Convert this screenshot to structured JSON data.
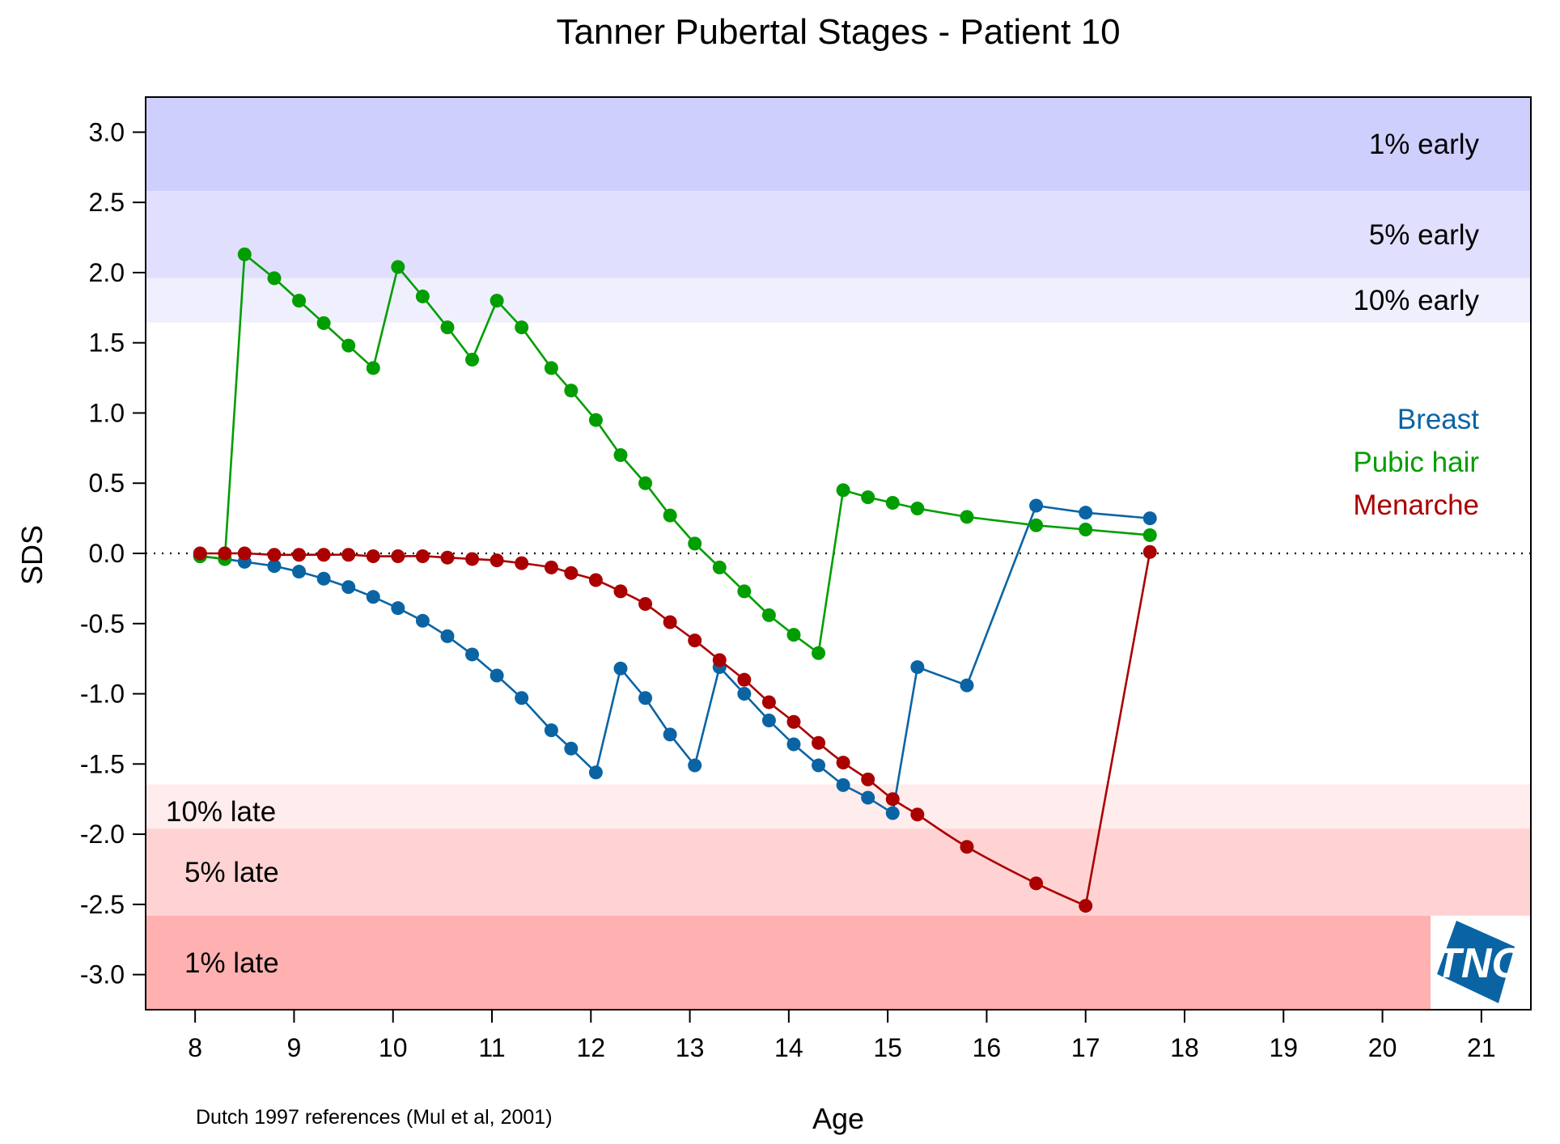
{
  "chart_data": {
    "type": "line",
    "title": "Tanner Pubertal Stages - Patient  10",
    "xlabel": "Age",
    "ylabel": "SDS",
    "xlim": [
      7.5,
      21.5
    ],
    "ylim": [
      -3.25,
      3.25
    ],
    "x_ticks": [
      8,
      9,
      10,
      11,
      12,
      13,
      14,
      15,
      16,
      17,
      18,
      19,
      20,
      21
    ],
    "y_ticks": [
      3.0,
      2.5,
      2.0,
      1.5,
      1.0,
      0.5,
      0.0,
      -0.5,
      -1.0,
      -1.5,
      -2.0,
      -2.5,
      -3.0
    ],
    "y_tick_labels": [
      "3.0",
      "2.5",
      "2.0",
      "1.5",
      "1.0",
      "0.5",
      "0.0",
      "-0.5",
      "-1.0",
      "-1.5",
      "-2.0",
      "-2.5",
      "-3.0"
    ],
    "reference_line": 0,
    "bands": [
      {
        "label": "1% early",
        "from": 2.58,
        "to": 3.25,
        "color": "#cfcffe"
      },
      {
        "label": "5% early",
        "from": 1.96,
        "to": 2.58,
        "color": "#e0e0fe"
      },
      {
        "label": "10% early",
        "from": 1.645,
        "to": 1.96,
        "color": "#efeffe"
      },
      {
        "label": "10% late",
        "from": -1.96,
        "to": -1.645,
        "color": "#ffecec"
      },
      {
        "label": "5% late",
        "from": -2.58,
        "to": -1.96,
        "color": "#ffd3d3"
      },
      {
        "label": "1% late",
        "from": -3.25,
        "to": -2.58,
        "color": "#ffb0b0"
      }
    ],
    "series": [
      {
        "name": "Breast",
        "color": "#0a64a4",
        "x": [
          8.05,
          8.3,
          8.5,
          8.8,
          9.05,
          9.3,
          9.55,
          9.8,
          10.05,
          10.3,
          10.55,
          10.8,
          11.05,
          11.3,
          11.6,
          11.8,
          12.05,
          12.3,
          12.55,
          12.8,
          13.05,
          13.3,
          13.55,
          13.8,
          14.05,
          14.3,
          14.55,
          14.8,
          15.05,
          15.3,
          15.8,
          16.5,
          17.0,
          17.65
        ],
        "y": [
          -0.02,
          -0.04,
          -0.06,
          -0.09,
          -0.13,
          -0.18,
          -0.24,
          -0.31,
          -0.39,
          -0.48,
          -0.59,
          -0.72,
          -0.87,
          -1.03,
          -1.26,
          -1.39,
          -1.56,
          -0.82,
          -1.03,
          -1.29,
          -1.51,
          -0.81,
          -1.0,
          -1.19,
          -1.36,
          -1.51,
          -1.65,
          -1.74,
          -1.85,
          -0.81,
          -0.94,
          0.34,
          0.29,
          0.25
        ]
      },
      {
        "name": "Pubic hair",
        "color": "#009e00",
        "x": [
          8.05,
          8.3,
          8.5,
          8.8,
          9.05,
          9.3,
          9.55,
          9.8,
          10.05,
          10.3,
          10.55,
          10.8,
          11.05,
          11.3,
          11.6,
          11.8,
          12.05,
          12.3,
          12.55,
          12.8,
          13.05,
          13.3,
          13.55,
          13.8,
          14.05,
          14.3,
          14.55,
          14.8,
          15.05,
          15.3,
          15.8,
          16.5,
          17.0,
          17.65
        ],
        "y": [
          -0.02,
          -0.04,
          2.13,
          1.96,
          1.8,
          1.64,
          1.48,
          1.32,
          2.04,
          1.83,
          1.61,
          1.38,
          1.8,
          1.61,
          1.32,
          1.16,
          0.95,
          0.7,
          0.5,
          0.27,
          0.07,
          -0.1,
          -0.27,
          -0.44,
          -0.58,
          -0.71,
          0.45,
          0.4,
          0.36,
          0.32,
          0.26,
          0.2,
          0.17,
          0.13
        ]
      },
      {
        "name": "Menarche",
        "color": "#aa0000",
        "smooth": true,
        "x": [
          8.05,
          8.3,
          8.5,
          8.8,
          9.05,
          9.3,
          9.55,
          9.8,
          10.05,
          10.3,
          10.55,
          10.8,
          11.05,
          11.3,
          11.6,
          11.8,
          12.05,
          12.3,
          12.55,
          12.8,
          13.05,
          13.3,
          13.55,
          13.8,
          14.05,
          14.3,
          14.55,
          14.8,
          15.05,
          15.3,
          15.8,
          16.5,
          17.0,
          17.65
        ],
        "y": [
          0.0,
          0.0,
          0.0,
          -0.01,
          -0.01,
          -0.01,
          -0.01,
          -0.02,
          -0.02,
          -0.02,
          -0.03,
          -0.04,
          -0.05,
          -0.07,
          -0.1,
          -0.14,
          -0.19,
          -0.27,
          -0.36,
          -0.49,
          -0.62,
          -0.76,
          -0.9,
          -1.06,
          -1.2,
          -1.35,
          -1.49,
          -1.61,
          -1.75,
          -1.86,
          -2.09,
          -2.35,
          -2.51,
          0.01
        ]
      }
    ],
    "legend": {
      "position": "right",
      "entries": [
        "Breast",
        "Pubic hair",
        "Menarche"
      ]
    },
    "footnote": "Dutch 1997 references (Mul et al, 2001)",
    "logo": {
      "text": "TNO",
      "color": "#0a64a4"
    }
  }
}
